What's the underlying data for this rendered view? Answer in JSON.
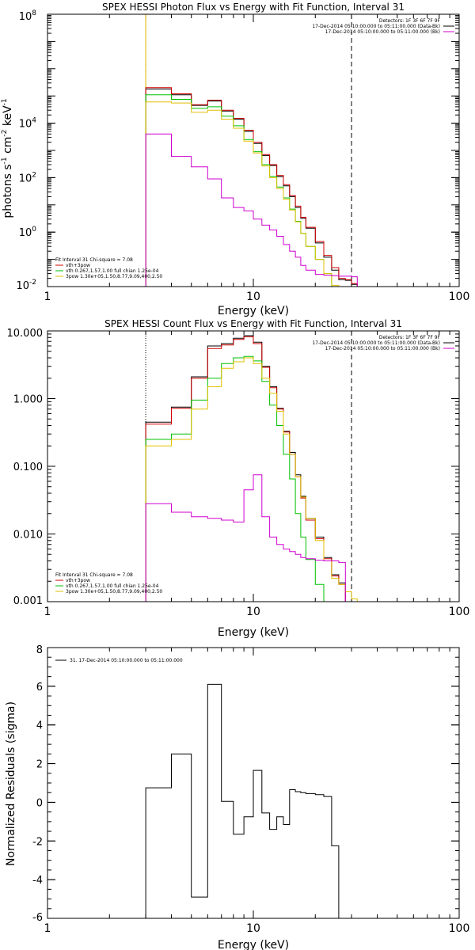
{
  "chart_data": [
    {
      "type": "line",
      "title": "SPEX HESSI Photon Flux vs Energy with Fit Function, Interval 31",
      "xlabel": "Energy (keV)",
      "ylabel": "photons s-1 cm-2 keV-1",
      "xscale": "log",
      "yscale": "log",
      "xlim": [
        1,
        100
      ],
      "ylim": [
        0.01,
        100000000
      ],
      "x_ticks": [
        {
          "v": 1,
          "label": "1"
        },
        {
          "v": 10,
          "label": "10"
        },
        {
          "v": 100,
          "label": "100"
        }
      ],
      "y_ticks": [
        {
          "v": 0.01,
          "b": "10",
          "e": "-2"
        },
        {
          "v": 1,
          "b": "10",
          "e": "0"
        },
        {
          "v": 100,
          "b": "10",
          "e": "2"
        },
        {
          "v": 10000,
          "b": "10",
          "e": "4"
        },
        {
          "v": 100000000,
          "b": "10",
          "e": "8"
        }
      ],
      "vlines": [
        {
          "x": 3,
          "style": "dotted",
          "color": "#000000"
        },
        {
          "x": 3,
          "style": "solid",
          "color": "#e0c000"
        },
        {
          "x": 30,
          "style": "dashed",
          "color": "#000000"
        }
      ],
      "edges": [
        3,
        4,
        5,
        6,
        7,
        8,
        9,
        10,
        11,
        12,
        13,
        14,
        15,
        16,
        17,
        18,
        20,
        22,
        24,
        26,
        28,
        30,
        32
      ],
      "series": [
        {
          "color": "#000000",
          "values": [
            180000,
            110000,
            45000,
            65000,
            28000,
            14000,
            5000,
            1800,
            650,
            280,
            110,
            50,
            20,
            8,
            3.2,
            1.4,
            0.4,
            0.12,
            0.04,
            0.018,
            0.017,
            0.012
          ]
        },
        {
          "color": "#d00000",
          "values": [
            200000,
            120000,
            48000,
            70000,
            30000,
            15000,
            5500,
            2000,
            700,
            300,
            120,
            55,
            22,
            9,
            3.5,
            1.5,
            0.45,
            0.14,
            0.05,
            0.02,
            0.018,
            0.013
          ]
        },
        {
          "color": "#00c000",
          "values": [
            110000,
            75000,
            35000,
            40000,
            18000,
            8000,
            2500,
            900,
            300,
            110,
            45,
            18,
            7,
            2.5,
            0.9,
            0.3,
            0.1,
            0.03,
            0.009
          ]
        },
        {
          "color": "#e0c000",
          "values": [
            60000,
            55000,
            25000,
            30000,
            14000,
            6500,
            2200,
            800,
            270,
            100,
            40,
            16,
            6.5,
            2.4,
            0.9,
            0.3,
            0.1,
            0.03,
            0.011,
            0.008,
            0.01,
            0.009
          ]
        },
        {
          "color": "#d000d0",
          "values": [
            4000,
            600,
            250,
            90,
            18,
            8,
            6,
            3,
            1.8,
            1.2,
            0.7,
            0.35,
            0.2,
            0.12,
            0.06,
            0.04,
            0.028,
            0.026,
            0.025,
            0.024,
            0.024,
            0.023
          ]
        }
      ],
      "legend": {
        "position": "top-right",
        "lines": [
          {
            "text": "Detectors: 1F 3F 6F 7F 9F",
            "color": ""
          },
          {
            "text": "17-Dec-2014 05:10:00.000 to 05:11:00.000 (Data-Bk)",
            "color": "#000000"
          },
          {
            "text": "17-Dec-2014 05:10:00.000 to 05:11:00.000 (Bk)",
            "color": "#d000d0"
          }
        ]
      },
      "fit_legend": {
        "position": "bottom-left",
        "lines": [
          {
            "text": "Fit Interval 31   Chi-square = 7.08",
            "color": ""
          },
          {
            "text": "vth+3pow",
            "color": "#d00000"
          },
          {
            "text": "vth 0.267,1.57,1.00  full chian 1.25e-04",
            "color": "#00c000"
          },
          {
            "text": "3pow 1.30e+05,1.50,8.77,9.09,400,2.50",
            "color": "#e0c000"
          }
        ]
      }
    },
    {
      "type": "line",
      "title": "SPEX HESSI Count Flux vs Energy with Fit Function, Interval 31",
      "xlabel": "Energy (keV)",
      "ylabel": "",
      "xscale": "log",
      "yscale": "log",
      "xlim": [
        1,
        100
      ],
      "ylim": [
        0.001,
        10
      ],
      "x_ticks": [
        {
          "v": 1,
          "label": "1"
        },
        {
          "v": 10,
          "label": "10"
        },
        {
          "v": 100,
          "label": "100"
        }
      ],
      "y_ticks": [
        {
          "v": 0.001,
          "label": "0.001"
        },
        {
          "v": 0.01,
          "label": "0.010"
        },
        {
          "v": 0.1,
          "label": "0.100"
        },
        {
          "v": 1,
          "label": "1.000"
        },
        {
          "v": 10,
          "label": "10.000"
        }
      ],
      "vlines": [
        {
          "x": 3,
          "style": "dotted",
          "color": "#000000"
        },
        {
          "x": 30,
          "style": "dashed",
          "color": "#000000"
        }
      ],
      "edges": [
        3,
        4,
        5,
        6,
        7,
        8,
        9,
        10,
        11,
        12,
        13,
        14,
        15,
        16,
        17,
        18,
        20,
        22,
        24,
        26,
        28,
        30,
        32,
        35
      ],
      "series": [
        {
          "color": "#000000",
          "values": [
            0.45,
            0.75,
            2.1,
            6,
            6.5,
            7.8,
            8.5,
            6.8,
            3,
            1.5,
            0.72,
            0.33,
            0.16,
            0.075,
            0.036,
            0.017,
            0.009,
            0.0045,
            0.0025,
            0.0019
          ]
        },
        {
          "color": "#d00000",
          "values": [
            0.42,
            0.72,
            2.0,
            5.5,
            6.2,
            7.5,
            8.2,
            6.5,
            2.9,
            1.45,
            0.7,
            0.32,
            0.15,
            0.07,
            0.034,
            0.016,
            0.0085,
            0.0043,
            0.0024,
            0.0018
          ]
        },
        {
          "color": "#00c000",
          "values": [
            0.25,
            0.3,
            0.95,
            2.0,
            3.3,
            4.0,
            4.2,
            3.6,
            1.8,
            0.8,
            0.4,
            0.15,
            0.065,
            0.02,
            0.009,
            0.0042,
            0.0018,
            0.001
          ]
        },
        {
          "color": "#e0c000",
          "values": [
            0.2,
            0.25,
            0.7,
            1.5,
            2.8,
            3.5,
            4.0,
            3.3,
            2.0,
            1.2,
            0.65,
            0.3,
            0.15,
            0.07,
            0.035,
            0.017,
            0.008,
            0.004,
            0.0022,
            0.0018,
            0.0014,
            0.0011,
            0.001
          ]
        },
        {
          "color": "#d000d0",
          "values": [
            0.028,
            0.021,
            0.018,
            0.017,
            0.016,
            0.015,
            0.045,
            0.075,
            0.018,
            0.009,
            0.007,
            0.006,
            0.0055,
            0.005,
            0.0045,
            0.0043,
            0.0041,
            0.004,
            0.004,
            0.0038
          ]
        }
      ],
      "legend": {
        "position": "top-right",
        "lines": [
          {
            "text": "Detectors: 1F 3F 6F 7F 9F",
            "color": ""
          },
          {
            "text": "17-Dec-2014 05:10:00.000 to 05:11:00.000 (Data-Bk)",
            "color": "#000000"
          },
          {
            "text": "17-Dec-2014 05:10:00.000 to 05:11:00.000 (Bk)",
            "color": "#d000d0"
          }
        ]
      },
      "fit_legend": {
        "position": "bottom-left",
        "lines": [
          {
            "text": "Fit Interval 31   Chi-square = 7.08",
            "color": ""
          },
          {
            "text": "vth+3pow",
            "color": "#d00000"
          },
          {
            "text": "vth 0.267,1.57,1.00  full chian 1.25e-04",
            "color": "#00c000"
          },
          {
            "text": "3pow 1.30e+05,1.50,8.77,9.09,400,2.50",
            "color": "#e0c000"
          }
        ]
      }
    },
    {
      "type": "line",
      "title": "",
      "xlabel": "Energy (keV)",
      "ylabel": "Normalized Residuals (sigma)",
      "xscale": "log",
      "yscale": "linear",
      "xlim": [
        1,
        100
      ],
      "ylim": [
        -6,
        8
      ],
      "x_ticks": [
        {
          "v": 1,
          "label": "1"
        },
        {
          "v": 10,
          "label": "10"
        },
        {
          "v": 100,
          "label": "100"
        }
      ],
      "y_ticks": [
        {
          "v": -6,
          "label": "-6"
        },
        {
          "v": -4,
          "label": "-4"
        },
        {
          "v": -2,
          "label": "-2"
        },
        {
          "v": 0,
          "label": "0"
        },
        {
          "v": 2,
          "label": "2"
        },
        {
          "v": 4,
          "label": "4"
        },
        {
          "v": 6,
          "label": "6"
        },
        {
          "v": 8,
          "label": "8"
        }
      ],
      "vlines": [],
      "edges": [
        3,
        4,
        5,
        6,
        7,
        8,
        9,
        10,
        11,
        12,
        13,
        14,
        15,
        16,
        17,
        18,
        20,
        22,
        24,
        26,
        28,
        30
      ],
      "series": [
        {
          "color": "#000000",
          "values": [
            0.75,
            2.5,
            -4.9,
            6.1,
            0.05,
            -1.65,
            -0.75,
            1.65,
            -0.55,
            -1.4,
            -0.75,
            -1.15,
            0.65,
            0.55,
            0.5,
            0.45,
            0.4,
            0.3,
            -2.25
          ]
        }
      ],
      "legend": {
        "position": "top-left",
        "lines": [
          {
            "text": "31. 17-Dec-2014 05:10:00.000 to 05:11:00.000",
            "color": "#000000"
          }
        ]
      },
      "fit_legend": {
        "position": "",
        "lines": []
      }
    }
  ]
}
